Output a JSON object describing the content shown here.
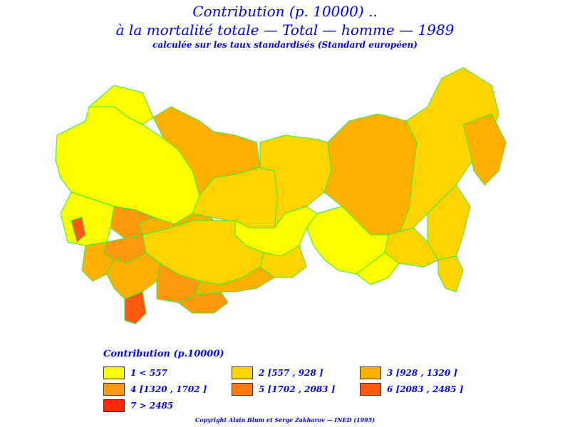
{
  "title": {
    "line1": "Contribution  (p. 10000)  ..",
    "line2": "à  la  mortalité  totale  —  Total  —  homme  —  1989",
    "line3": "calculée sur les taux standardisés (Standard européen)"
  },
  "colors": {
    "border": "#33ee33",
    "c1": "#ffff00",
    "c2": "#ffd400",
    "c3": "#ffb000",
    "c4": "#ff9a10",
    "c5": "#ff7a10",
    "c6": "#ff5a10",
    "c7": "#ff2a00"
  },
  "legend": {
    "title": "Contribution  (p.10000)",
    "items": [
      {
        "label": "1  <  557",
        "color": "#ffff00"
      },
      {
        "label": "2  [557  ,  928  ]",
        "color": "#ffd400"
      },
      {
        "label": "3  [928  ,  1320  ]",
        "color": "#ffb000"
      },
      {
        "label": "4  [1320  ,  1702  ]",
        "color": "#ff9a10"
      },
      {
        "label": "5  [1702  ,  2083  ]",
        "color": "#ff7a10"
      },
      {
        "label": "6  [2083  ,  2485  ]",
        "color": "#ff5a10"
      },
      {
        "label": "7  >  2485",
        "color": "#ff2a00"
      }
    ]
  },
  "copyright": "Copyright  Alain  Blum  et  Serge  Zakharov  —  INED (1995)"
}
